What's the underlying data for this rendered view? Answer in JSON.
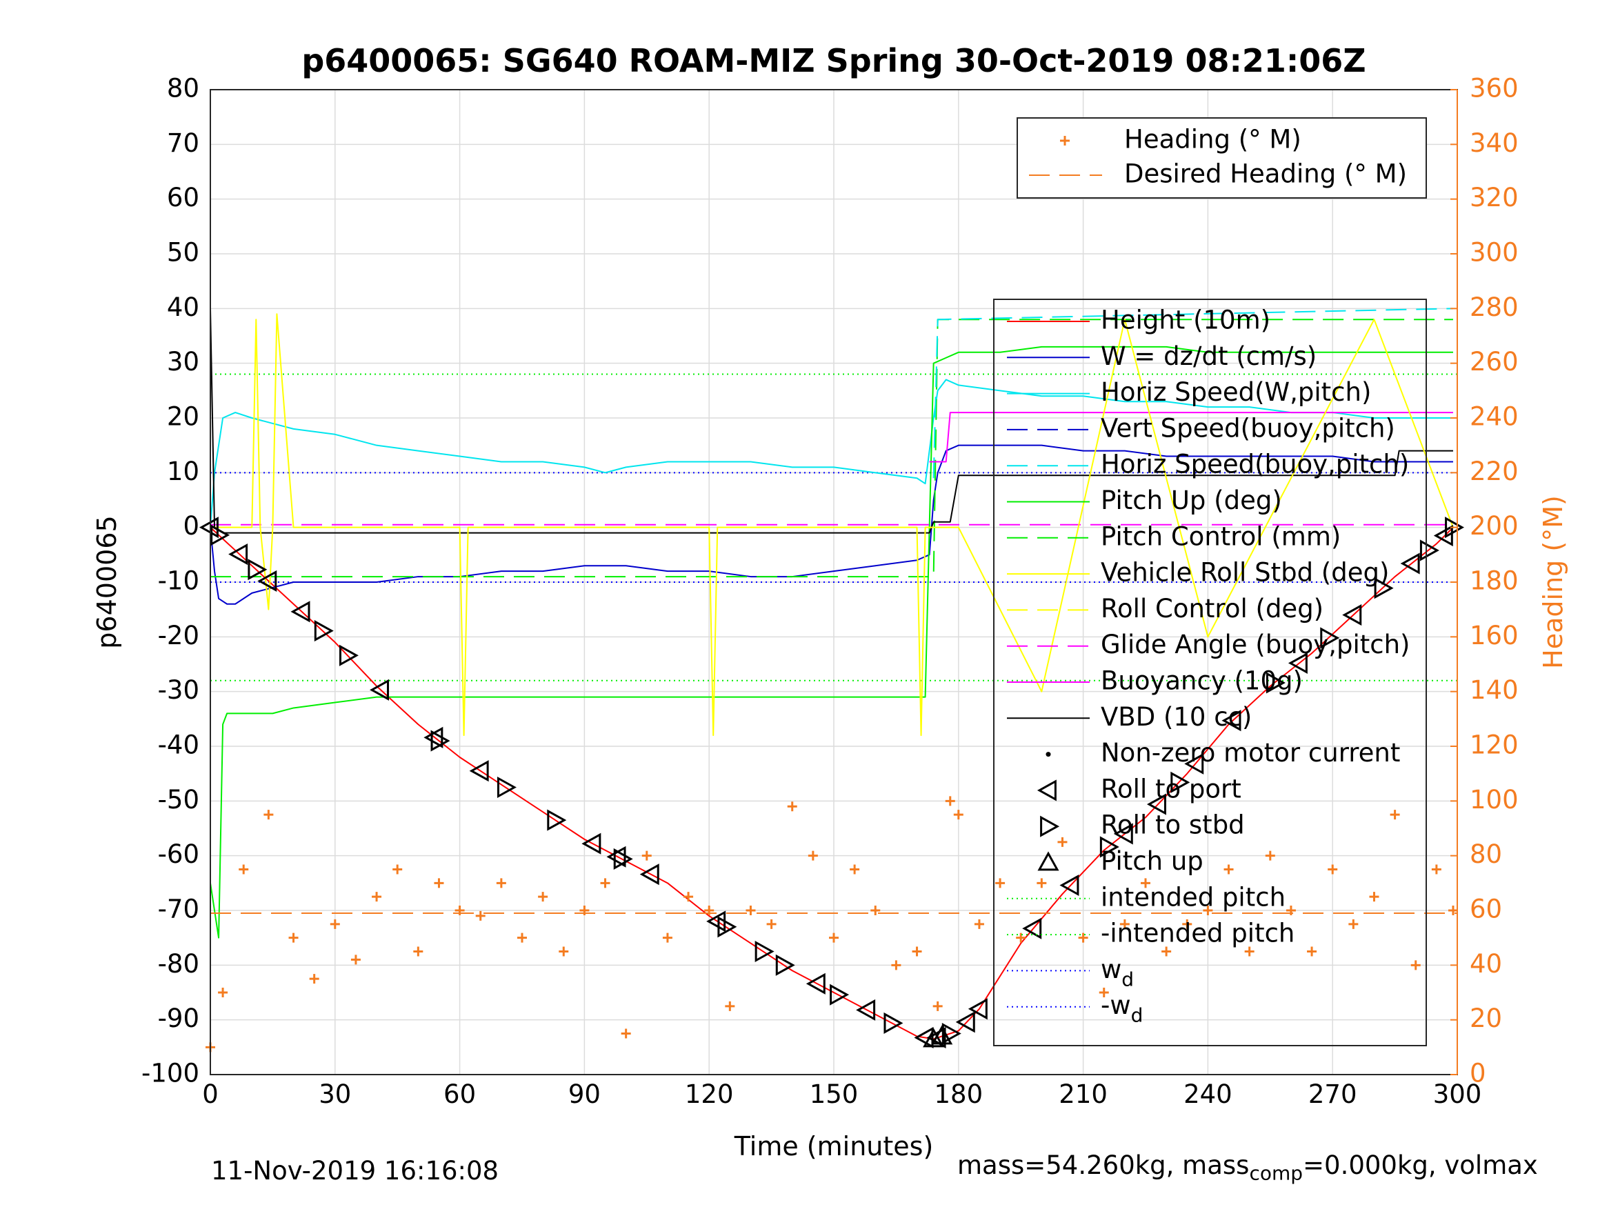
{
  "chart_data": {
    "type": "line",
    "title": "p6400065: SG640 ROAM-MIZ Spring 30-Oct-2019 08:21:06Z",
    "xlabel": "Time (minutes)",
    "ylabel": "p6400065",
    "y2label": "Heading (°M)",
    "xlim": [
      0,
      300
    ],
    "ylim": [
      -100,
      80
    ],
    "y2lim": [
      0,
      360
    ],
    "x_ticks": [
      0,
      30,
      60,
      90,
      120,
      150,
      180,
      210,
      240,
      270,
      300
    ],
    "y_ticks": [
      80,
      70,
      60,
      50,
      40,
      30,
      20,
      10,
      0,
      -10,
      -20,
      -30,
      -40,
      -50,
      -60,
      -70,
      -80,
      -90,
      -100
    ],
    "y2_ticks": [
      360,
      340,
      320,
      300,
      280,
      260,
      240,
      220,
      200,
      180,
      160,
      140,
      120,
      100,
      80,
      60,
      40,
      20,
      0
    ],
    "grid": true,
    "colors": {
      "heading": "#f47c20",
      "height": "#ff0000",
      "w": "#0000cc",
      "horiz_speed": "#00e5ee",
      "pitch": "#00ee00",
      "roll": "#ffff00",
      "glide": "#ff00ff",
      "vbd": "#000000",
      "wd": "#0000ff"
    },
    "legend_top": [
      {
        "label": "Heading (° M)",
        "style": "plus",
        "color": "#f47c20"
      },
      {
        "label": "Desired Heading (° M)",
        "style": "dash",
        "color": "#f47c20"
      }
    ],
    "legend_main": [
      {
        "label": "Height (10m)",
        "style": "line",
        "color": "#ff0000"
      },
      {
        "label": "W = dz/dt (cm/s)",
        "style": "line",
        "color": "#0000cc"
      },
      {
        "label": "Horiz Speed(W,pitch)",
        "style": "line",
        "color": "#00e5ee"
      },
      {
        "label": "Vert Speed(buoy,pitch)",
        "style": "dash",
        "color": "#0000cc"
      },
      {
        "label": "Horiz Speed(buoy,pitch)",
        "style": "dash",
        "color": "#00e5ee"
      },
      {
        "label": "Pitch Up (deg)",
        "style": "line",
        "color": "#00ee00"
      },
      {
        "label": "Pitch Control (mm)",
        "style": "dash",
        "color": "#00ee00"
      },
      {
        "label": "Vehicle Roll Stbd (deg)",
        "style": "line",
        "color": "#ffff00"
      },
      {
        "label": "Roll Control (deg)",
        "style": "dash",
        "color": "#ffff00"
      },
      {
        "label": "Glide Angle (buoy,pitch)",
        "style": "dash",
        "color": "#ff00ff"
      },
      {
        "label": "Buoyancy (10g)",
        "style": "line",
        "color": "#ff00ff"
      },
      {
        "label": "VBD (10 cc)",
        "style": "line",
        "color": "#000000"
      },
      {
        "label": "Non-zero motor current",
        "style": "dot",
        "color": "#000000"
      },
      {
        "label": "Roll to port",
        "style": "tri-left",
        "color": "#000000"
      },
      {
        "label": "Roll to stbd",
        "style": "tri-right",
        "color": "#000000"
      },
      {
        "label": "Pitch up",
        "style": "tri-up",
        "color": "#000000"
      },
      {
        "label": "intended pitch",
        "style": "dotted",
        "color": "#00ee00"
      },
      {
        "label": "-intended pitch",
        "style": "dotted",
        "color": "#00ee00"
      },
      {
        "label": "w",
        "sub": "d",
        "style": "dotted",
        "color": "#0000ff"
      },
      {
        "label": "-w",
        "sub": "d",
        "style": "dotted",
        "color": "#0000ff"
      }
    ],
    "series": [
      {
        "name": "Height (10m)",
        "x": [
          0,
          10,
          20,
          30,
          40,
          50,
          60,
          70,
          80,
          90,
          100,
          110,
          120,
          130,
          140,
          150,
          160,
          170,
          174,
          180,
          185,
          195,
          205,
          215,
          225,
          235,
          245,
          255,
          265,
          275,
          285,
          295,
          299
        ],
        "y": [
          0,
          -7,
          -14,
          -21,
          -29,
          -36,
          -42,
          -47,
          -52,
          -57,
          -61,
          -65,
          -71,
          -76,
          -81,
          -85,
          -89,
          -93,
          -93.5,
          -92,
          -88,
          -76,
          -67,
          -59,
          -53,
          -45,
          -36,
          -29,
          -23,
          -16,
          -9,
          -3,
          0
        ]
      },
      {
        "name": "W = dz/dt (cm/s)",
        "x": [
          0,
          1,
          2,
          4,
          6,
          10,
          15,
          20,
          30,
          40,
          50,
          60,
          70,
          80,
          90,
          100,
          110,
          120,
          130,
          140,
          150,
          160,
          170,
          173,
          174,
          175,
          177,
          180,
          190,
          200,
          210,
          220,
          230,
          240,
          250,
          260,
          270,
          280,
          290,
          299
        ],
        "y": [
          0,
          -8,
          -13,
          -14,
          -14,
          -12,
          -11,
          -10,
          -10,
          -10,
          -9,
          -9,
          -8,
          -8,
          -7,
          -7,
          -8,
          -8,
          -9,
          -9,
          -8,
          -7,
          -6,
          -5,
          5,
          10,
          14,
          15,
          15,
          15,
          14,
          14,
          13,
          13,
          13,
          13,
          13,
          12,
          12,
          12
        ]
      },
      {
        "name": "Horiz Speed(W,pitch)",
        "x": [
          0,
          1,
          3,
          6,
          10,
          15,
          20,
          30,
          40,
          50,
          60,
          70,
          80,
          90,
          95,
          100,
          110,
          120,
          130,
          140,
          150,
          160,
          170,
          172,
          174,
          175,
          177,
          180,
          190,
          200,
          210,
          220,
          230,
          240,
          250,
          260,
          270,
          280,
          290,
          299
        ],
        "y": [
          0,
          10,
          20,
          21,
          20,
          19,
          18,
          17,
          15,
          14,
          13,
          12,
          12,
          11,
          10,
          11,
          12,
          12,
          12,
          11,
          11,
          10,
          9,
          8,
          20,
          25,
          27,
          26,
          25,
          24,
          24,
          23,
          23,
          22,
          22,
          21,
          21,
          20,
          20,
          20
        ]
      },
      {
        "name": "Pitch Up (deg)",
        "x": [
          0,
          2,
          3,
          4,
          8,
          15,
          20,
          30,
          40,
          50,
          60,
          70,
          80,
          90,
          100,
          110,
          120,
          130,
          140,
          150,
          160,
          172,
          173,
          174,
          177,
          180,
          185,
          190,
          200,
          210,
          220,
          230,
          240,
          250,
          260,
          270,
          280,
          290,
          299
        ],
        "y": [
          -65,
          -75,
          -36,
          -34,
          -34,
          -34,
          -33,
          -32,
          -31,
          -31,
          -31,
          -31,
          -31,
          -31,
          -31,
          -31,
          -31,
          -31,
          -31,
          -31,
          -31,
          -31,
          0,
          30,
          31,
          32,
          32,
          32,
          33,
          33,
          33,
          33,
          32,
          32,
          32,
          32,
          32,
          32,
          32
        ]
      },
      {
        "name": "Pitch Control (mm)",
        "x": [
          0,
          3,
          174,
          175,
          299
        ],
        "y": [
          -9,
          -9,
          -9,
          38,
          38
        ]
      },
      {
        "name": "Horiz Speed(buoy,pitch)",
        "x": [
          174,
          175,
          299
        ],
        "y": [
          9,
          38,
          40
        ]
      },
      {
        "name": "Glide Angle (buoy,pitch)",
        "x": [
          0,
          173,
          299
        ],
        "y": [
          0.5,
          0.5,
          0.5
        ]
      },
      {
        "name": "Buoyancy (10g)",
        "x": [
          173,
          177,
          178,
          240,
          280,
          299
        ],
        "y": [
          12,
          12,
          21,
          21,
          21,
          21
        ]
      },
      {
        "name": "VBD (10 cc)",
        "x": [
          0,
          1,
          3,
          173,
          174,
          178,
          180,
          285,
          286,
          299
        ],
        "y": [
          40,
          0,
          -1,
          -1,
          1,
          1,
          9.5,
          9.5,
          14,
          14
        ]
      },
      {
        "name": "Vehicle Roll Stbd (deg)",
        "x": [
          0,
          10,
          11,
          12,
          14,
          15,
          16,
          20,
          60,
          61,
          62,
          120,
          121,
          122,
          130,
          170,
          171,
          172,
          180,
          200,
          220,
          240,
          280,
          299
        ],
        "y": [
          0,
          0,
          38,
          0,
          -15,
          0,
          39,
          0,
          0,
          -38,
          0,
          0,
          -38,
          0,
          0,
          0,
          -38,
          0,
          0,
          -30,
          38,
          -20,
          38,
          0
        ]
      },
      {
        "name": "Heading (° M)",
        "x": [
          0,
          3,
          8,
          14,
          20,
          25,
          30,
          35,
          40,
          45,
          50,
          55,
          60,
          65,
          70,
          75,
          80,
          85,
          90,
          95,
          100,
          105,
          110,
          115,
          120,
          125,
          130,
          135,
          140,
          145,
          150,
          155,
          160,
          165,
          170,
          175,
          178,
          180,
          185,
          190,
          195,
          200,
          205,
          210,
          215,
          220,
          225,
          230,
          235,
          240,
          245,
          250,
          255,
          260,
          265,
          270,
          275,
          280,
          285,
          290,
          295,
          299
        ],
        "y": [
          10,
          30,
          75,
          95,
          50,
          35,
          55,
          42,
          65,
          75,
          45,
          70,
          60,
          58,
          70,
          50,
          65,
          45,
          60,
          70,
          15,
          80,
          50,
          65,
          60,
          25,
          60,
          55,
          98,
          80,
          50,
          75,
          60,
          40,
          45,
          25,
          100,
          95,
          55,
          70,
          50,
          70,
          85,
          50,
          30,
          55,
          70,
          45,
          55,
          60,
          75,
          45,
          80,
          60,
          45,
          75,
          55,
          65,
          95,
          40,
          75,
          60
        ]
      },
      {
        "name": "Desired Heading (° M)",
        "x": [
          0,
          300
        ],
        "y": [
          59,
          59
        ]
      }
    ],
    "reference_lines": [
      {
        "name": "intended pitch",
        "y": 28
      },
      {
        "name": "-intended pitch",
        "y": -28
      },
      {
        "name": "wd",
        "y": 10
      },
      {
        "name": "-wd",
        "y": -10
      }
    ],
    "markers": {
      "roll_to_port": [
        0,
        7,
        14,
        22,
        41,
        54,
        65,
        92,
        98,
        106,
        122,
        146,
        158,
        172,
        175,
        182,
        185,
        198,
        207,
        220,
        228,
        237,
        246,
        262,
        275,
        289,
        297
      ],
      "roll_to_stbd": [
        2,
        11,
        27,
        33,
        55,
        71,
        83,
        99,
        124,
        133,
        138,
        151,
        164,
        178,
        216,
        233,
        256,
        269,
        282,
        293,
        299
      ],
      "pitch_up": [
        174,
        176
      ]
    }
  },
  "footer": {
    "date": "11-Nov-2019 16:16:08",
    "mass_text": "mass=54.260kg, mass",
    "mass_sub": "comp",
    "mass_rest": "=0.000kg, volmax"
  }
}
